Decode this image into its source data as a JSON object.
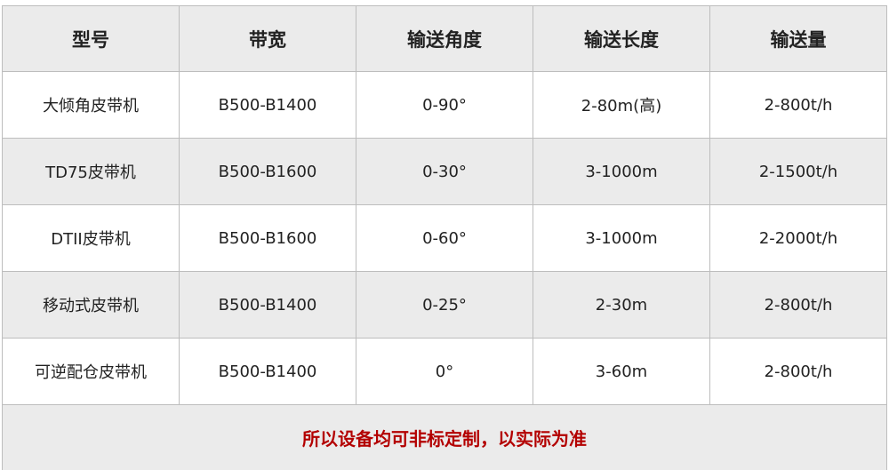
{
  "headers": [
    "型号",
    "带宽",
    "输送角度",
    "输送长度",
    "输送量"
  ],
  "rows": [
    [
      "大倾角皮带机",
      "B500-B1400",
      "0-90°",
      "2-80m(高)",
      "2-800t/h"
    ],
    [
      "TD75皮带机",
      "B500-B1600",
      "0-30°",
      "3-1000m",
      "2-1500t/h"
    ],
    [
      "DTII皮带机",
      "B500-B1600",
      "0-60°",
      "3-1000m",
      "2-2000t/h"
    ],
    [
      "移动式皮带机",
      "B500-B1400",
      "0-25°",
      "2-30m",
      "2-800t/h"
    ],
    [
      "可逆配仓皮带机",
      "B500-B1400",
      "0°",
      "3-60m",
      "2-800t/h"
    ]
  ],
  "note": "所以设备均可非标定制，以实际为准",
  "colors": {
    "header_bg": "#ebebeb",
    "alt_row_bg": "#ebebeb",
    "note_text": "#b30000",
    "border": "#bdbdbd"
  }
}
